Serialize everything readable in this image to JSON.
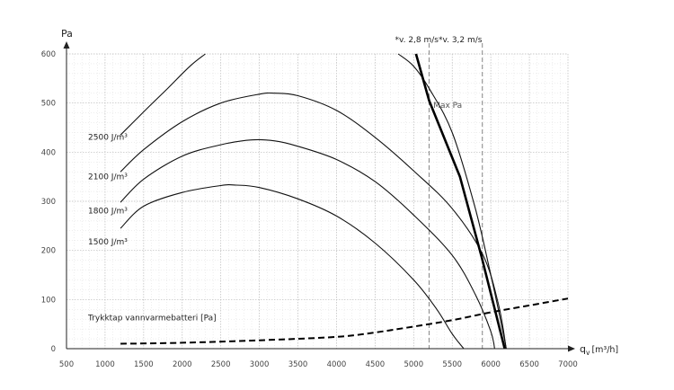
{
  "chart_data": {
    "type": "line",
    "ylabel": "Pa",
    "xlabel": "q",
    "xlabel_sub": "v",
    "xlabel_unit": "[m³/h]",
    "xlim": [
      500,
      7000
    ],
    "ylim": [
      0,
      600
    ],
    "x_ticks": [
      500,
      1000,
      1500,
      2000,
      2500,
      3000,
      3500,
      4000,
      4500,
      5000,
      5500,
      6000,
      6500,
      7000
    ],
    "y_ticks": [
      0,
      100,
      200,
      300,
      400,
      500,
      600
    ],
    "grid": true,
    "series": [
      {
        "name": "1500 J/m³",
        "kind": "fan",
        "points": [
          [
            1200,
            245
          ],
          [
            1500,
            290
          ],
          [
            2000,
            318
          ],
          [
            2500,
            332
          ],
          [
            2700,
            333
          ],
          [
            3000,
            328
          ],
          [
            3500,
            305
          ],
          [
            4000,
            270
          ],
          [
            4500,
            215
          ],
          [
            5000,
            140
          ],
          [
            5300,
            80
          ],
          [
            5500,
            30
          ],
          [
            5650,
            0
          ]
        ]
      },
      {
        "name": "1800 J/m³",
        "kind": "fan",
        "points": [
          [
            1200,
            298
          ],
          [
            1500,
            345
          ],
          [
            2000,
            392
          ],
          [
            2500,
            415
          ],
          [
            2900,
            425
          ],
          [
            3200,
            423
          ],
          [
            3500,
            412
          ],
          [
            4000,
            385
          ],
          [
            4500,
            340
          ],
          [
            5000,
            272
          ],
          [
            5500,
            190
          ],
          [
            5800,
            110
          ],
          [
            6000,
            35
          ],
          [
            6050,
            0
          ]
        ]
      },
      {
        "name": "2100 J/m³",
        "kind": "fan",
        "points": [
          [
            1200,
            360
          ],
          [
            1500,
            405
          ],
          [
            2000,
            462
          ],
          [
            2500,
            500
          ],
          [
            3000,
            518
          ],
          [
            3200,
            520
          ],
          [
            3500,
            515
          ],
          [
            4000,
            485
          ],
          [
            4500,
            430
          ],
          [
            5000,
            362
          ],
          [
            5500,
            285
          ],
          [
            5900,
            190
          ],
          [
            6100,
            90
          ],
          [
            6200,
            0
          ]
        ]
      },
      {
        "name": "2500 J/m³",
        "kind": "fan",
        "points": [
          [
            1200,
            435
          ],
          [
            1500,
            482
          ],
          [
            1800,
            528
          ],
          [
            2100,
            575
          ],
          [
            2300,
            600
          ]
        ]
      },
      {
        "name": "",
        "kind": "fan",
        "points": [
          [
            4800,
            600
          ],
          [
            5000,
            575
          ],
          [
            5200,
            530
          ],
          [
            5500,
            440
          ],
          [
            5800,
            285
          ],
          [
            6000,
            150
          ],
          [
            6150,
            40
          ],
          [
            6200,
            0
          ]
        ]
      },
      {
        "name": "",
        "kind": "limit",
        "points": [
          [
            5030,
            600
          ],
          [
            5200,
            505
          ],
          [
            5600,
            350
          ],
          [
            5880,
            187
          ],
          [
            6180,
            0
          ]
        ]
      },
      {
        "name": "Trykktap vannvarmebatteri [Pa]",
        "kind": "battery",
        "points": [
          [
            1200,
            10
          ],
          [
            2000,
            12
          ],
          [
            3000,
            17
          ],
          [
            4000,
            24
          ],
          [
            4500,
            33
          ],
          [
            5000,
            45
          ],
          [
            5500,
            58
          ],
          [
            6000,
            74
          ],
          [
            6500,
            88
          ],
          [
            7000,
            102
          ]
        ]
      }
    ],
    "vertical_lines": [
      {
        "x": 5200,
        "label": "*v. 2,8 m/s"
      },
      {
        "x": 5890,
        "label": "*v. 3,2 m/s"
      }
    ],
    "annotations": [
      {
        "text": "Max Pa",
        "x": 5255,
        "y": 490
      }
    ],
    "curve_labels": [
      {
        "text": "2500 J/m³",
        "x": 780,
        "y": 425
      },
      {
        "text": "2100 J/m³",
        "x": 780,
        "y": 345
      },
      {
        "text": "1800 J/m³",
        "x": 780,
        "y": 275
      },
      {
        "text": "1500 J/m³",
        "x": 780,
        "y": 212
      },
      {
        "text": "Trykktap vannvarmebatteri [Pa]",
        "x": 780,
        "y": 58
      }
    ],
    "style": {
      "curve_color": "#111111",
      "limit_color": "#000000",
      "vline_color": "#888888",
      "grid_color": "#bbbbbb"
    }
  }
}
